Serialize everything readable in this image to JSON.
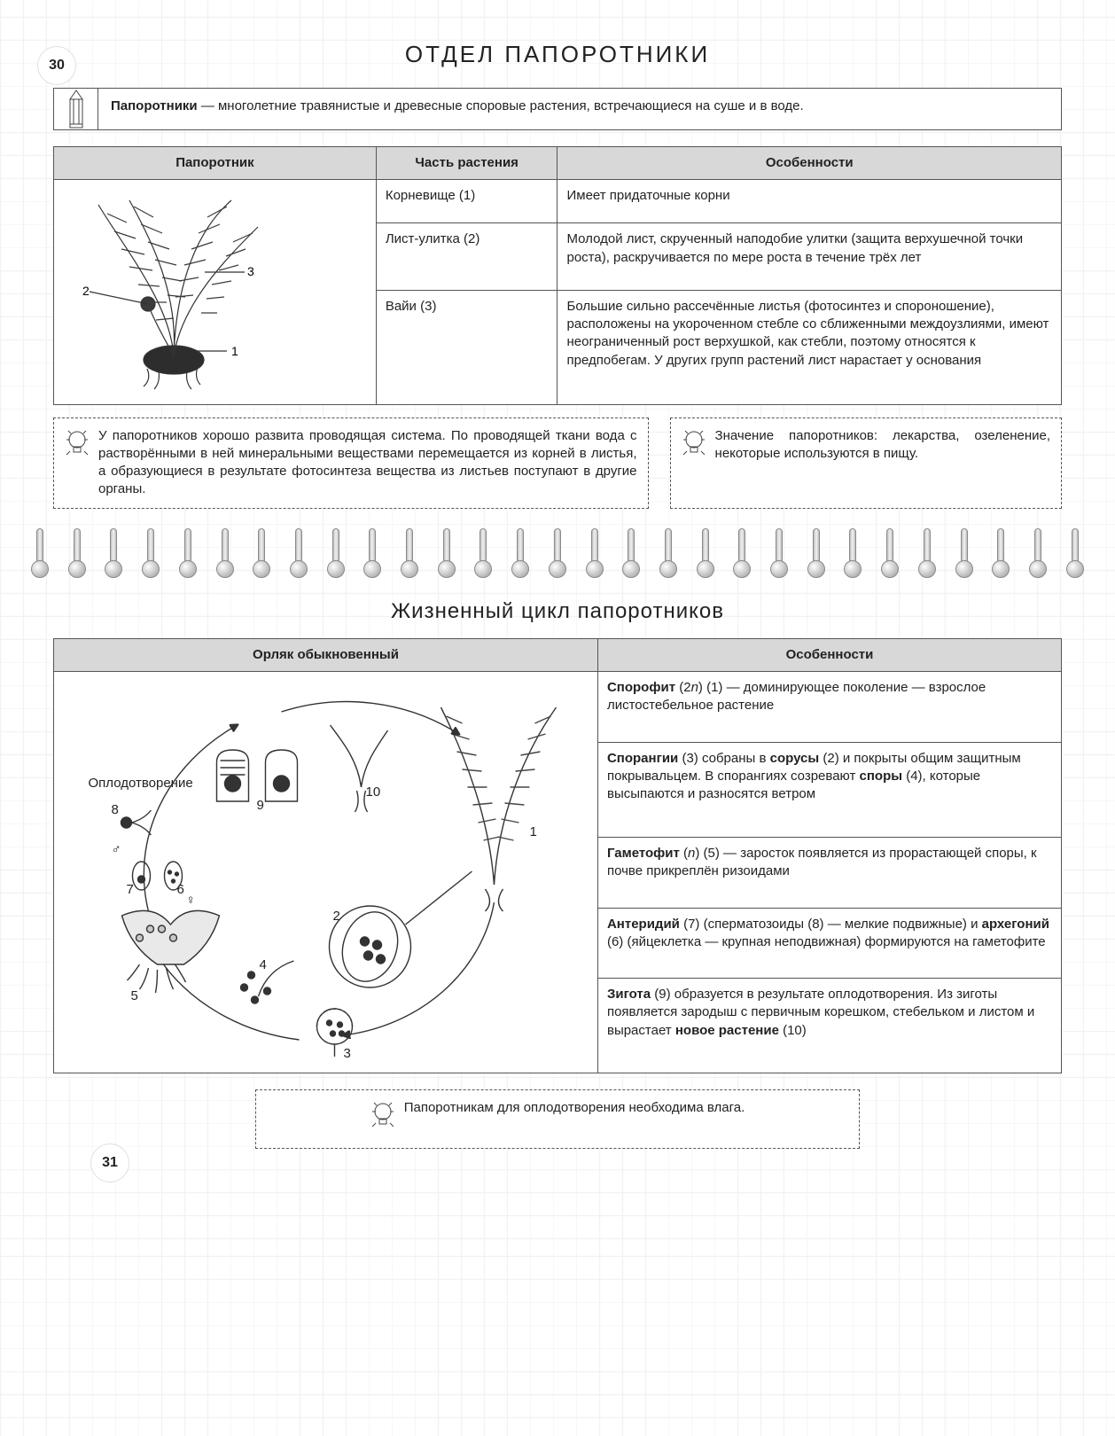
{
  "page_top": "30",
  "page_bottom": "31",
  "title": "ОТДЕЛ  ПАПОРОТНИКИ",
  "definition_lead": "Папоротники",
  "definition_body": " — многолетние травянистые и древесные споровые растения, встречающиеся на суше и в воде.",
  "fern_table": {
    "headers": [
      "Папоротник",
      "Часть растения",
      "Особенности"
    ],
    "image_labels": {
      "l1": "1",
      "l2": "2",
      "l3": "3"
    },
    "rows": [
      {
        "part": "Корневище (1)",
        "feat": "Имеет придаточные корни"
      },
      {
        "part": "Лист-улитка (2)",
        "feat": "Молодой лист, скрученный наподобие улитки (защита верхушечной точки роста), раскручивается по мере роста в течение трёх лет"
      },
      {
        "part": "Вайи (3)",
        "feat": "Большие сильно рассечённые листья (фотосинтез и спороношение), расположены на укороченном стебле со сближенными междоузлиями, имеют неограниченный рост верхушкой, как стебли, поэтому относятся к предпобегам. У других групп растений лист нарастает у основания"
      }
    ]
  },
  "tip_left": "У папоротников хорошо развита проводящая система. По проводящей ткани вода с растворёнными в ней минеральными веществами перемещается из корней в листья, а образующиеся в результате фотосинтеза вещества из листьев поступают в другие органы.",
  "tip_right": "Значение папоротников: лекарства, озеленение, некоторые используются в пищу.",
  "cycle_title": "Жизненный цикл папоротников",
  "cycle_table": {
    "headers": [
      "Орляк обыкновенный",
      "Особенности"
    ],
    "diagram_labels": {
      "fertilization": "Оплодотворение",
      "n": [
        "1",
        "2",
        "3",
        "4",
        "5",
        "6",
        "7",
        "8",
        "9",
        "10"
      ],
      "male": "♂",
      "female": "♀"
    },
    "features": [
      "<b>Спорофит</b> (2<i>n</i>) (1) — доминирующее поколение — взрослое листостебельное растение",
      "<b>Спорангии</b> (3) собраны в <b>сорусы</b> (2) и покрыты общим защитным покрывальцем. В спорангиях созревают <b>споры</b> (4), которые высыпаются и разносятся ветром",
      "<b>Гаметофит</b> (<i>n</i>) (5) — заросток появляется из прорастающей споры, к почве прикреплён ризоидами",
      "<b>Антеридий</b> (7) (сперматозоиды (8) — мелкие подвижные) и <b>архегоний</b> (6) (яйцеклетка — крупная неподвижная) формируются на гаметофите",
      "<b>Зигота</b> (9) образуется в результате оплодотворения. Из зиготы появляется зародыш с первичным корешком, стебельком и листом и вырастает <b>новое растение</b> (10)"
    ]
  },
  "tip_bottom": "Папоротникам для оплодотворения необходима влага.",
  "colors": {
    "grid_bg": "#ffffff",
    "grid_line": "#f2f2f2",
    "border": "#555555",
    "header_bg": "#d8d8d8"
  }
}
